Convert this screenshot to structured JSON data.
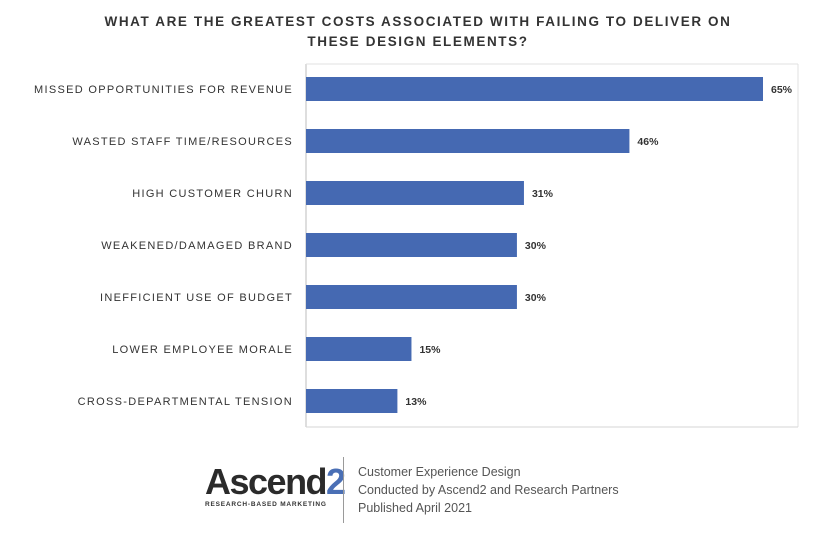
{
  "chart_data": {
    "type": "bar",
    "orientation": "horizontal",
    "title_line1": "WHAT ARE THE GREATEST COSTS ASSOCIATED WITH FAILING TO DELIVER ON",
    "title_line2": "THESE DESIGN ELEMENTS?",
    "categories": [
      "MISSED OPPORTUNITIES FOR REVENUE",
      "WASTED STAFF TIME/RESOURCES",
      "HIGH CUSTOMER CHURN",
      "WEAKENED/DAMAGED BRAND",
      "INEFFICIENT USE OF BUDGET",
      "LOWER EMPLOYEE MORALE",
      "CROSS-DEPARTMENTAL TENSION"
    ],
    "values": [
      65,
      46,
      31,
      30,
      30,
      15,
      13
    ],
    "value_suffix": "%",
    "xlim": [
      0,
      70
    ],
    "bar_color": "#4569b2",
    "grid": false
  },
  "footer": {
    "logo_main": "Ascend",
    "logo_digit": "2",
    "logo_tagline": "RESEARCH-BASED MARKETING",
    "line1": "Customer Experience Design",
    "line2": "Conducted by Ascend2 and Research Partners",
    "line3": "Published April 2021"
  }
}
